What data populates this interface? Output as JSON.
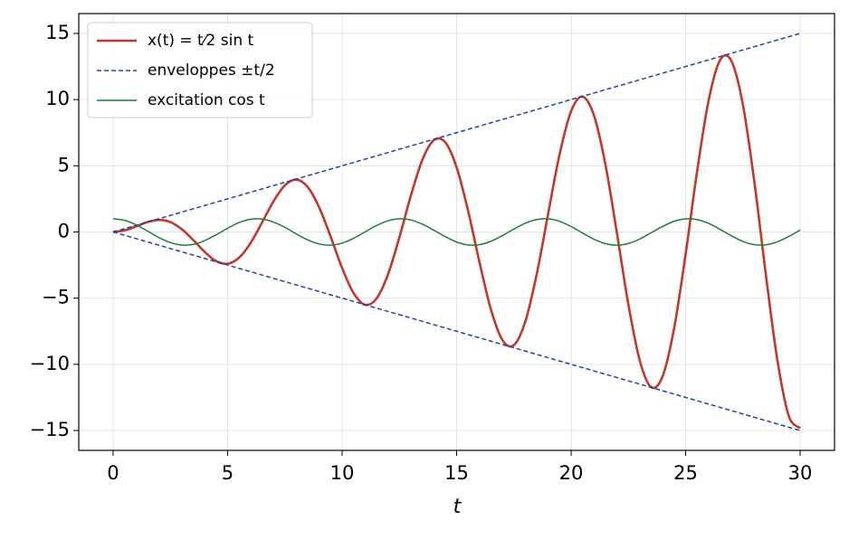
{
  "chart_data": {
    "type": "line",
    "x_label": "t",
    "x": [
      0,
      0.5,
      1,
      1.5,
      2,
      2.5,
      3,
      3.5,
      4,
      4.5,
      5,
      5.5,
      6,
      6.5,
      7,
      7.5,
      8,
      8.5,
      9,
      9.5,
      10,
      10.5,
      11,
      11.5,
      12,
      12.5,
      13,
      13.5,
      14,
      14.5,
      15,
      15.5,
      16,
      16.5,
      17,
      17.5,
      18,
      18.5,
      19,
      19.5,
      20,
      20.5,
      21,
      21.5,
      22,
      22.5,
      23,
      23.5,
      24,
      24.5,
      25,
      25.5,
      26,
      26.5,
      27,
      27.5,
      28,
      28.5,
      29,
      29.5,
      30
    ],
    "series": [
      {
        "name": "x(t) = t⁄2 sin t",
        "color": "#c0392b",
        "width": 2.6,
        "dash": "solid",
        "values": [
          0,
          0.12,
          0.42,
          0.75,
          0.91,
          0.75,
          0.21,
          -0.61,
          -1.51,
          -2.2,
          -2.4,
          -1.94,
          -0.84,
          0.7,
          2.3,
          3.52,
          3.96,
          3.39,
          1.85,
          -0.36,
          -2.72,
          -4.62,
          -5.5,
          -5.03,
          -3.22,
          -0.41,
          2.73,
          5.43,
          6.93,
          6.78,
          4.88,
          1.6,
          -2.3,
          -5.87,
          -8.17,
          -8.54,
          -6.76,
          -3.17,
          1.42,
          5.9,
          9.13,
          10.22,
          8.79,
          5.07,
          -0.1,
          -5.48,
          -9.73,
          -11.73,
          -10.87,
          -7.24,
          -1.66,
          4.58,
          9.91,
          12.98,
          12.91,
          9.62,
          3.79,
          -3.19,
          -9.62,
          -13.88,
          -14.82
        ]
      },
      {
        "name": "enveloppes ±t/2",
        "color": "#2440b3",
        "width": 1.5,
        "dash": "dashed",
        "values": [
          0,
          0.25,
          0.5,
          0.75,
          1,
          1.25,
          1.5,
          1.75,
          2,
          2.25,
          2.5,
          2.75,
          3,
          3.25,
          3.5,
          3.75,
          4,
          4.25,
          4.5,
          4.75,
          5,
          5.25,
          5.5,
          5.75,
          6,
          6.25,
          6.5,
          6.75,
          7,
          7.25,
          7.5,
          7.75,
          8,
          8.25,
          8.5,
          8.75,
          9,
          9.25,
          9.5,
          9.75,
          10,
          10.25,
          10.5,
          10.75,
          11,
          11.25,
          11.5,
          11.75,
          12,
          12.25,
          12.5,
          12.75,
          13,
          13.25,
          13.5,
          13.75,
          14,
          14.25,
          14.5,
          14.75,
          15
        ]
      },
      {
        "color": "#2440b3",
        "width": 1.5,
        "dash": "dashed",
        "values": [
          0,
          -0.25,
          -0.5,
          -0.75,
          -1,
          -1.25,
          -1.5,
          -1.75,
          -2,
          -2.25,
          -2.5,
          -2.75,
          -3,
          -3.25,
          -3.5,
          -3.75,
          -4,
          -4.25,
          -4.5,
          -4.75,
          -5,
          -5.25,
          -5.5,
          -5.75,
          -6,
          -6.25,
          -6.5,
          -6.75,
          -7,
          -7.25,
          -7.5,
          -7.75,
          -8,
          -8.25,
          -8.5,
          -8.75,
          -9,
          -9.25,
          -9.5,
          -9.75,
          -10,
          -10.25,
          -10.5,
          -10.75,
          -11,
          -11.25,
          -11.5,
          -11.75,
          -12,
          -12.25,
          -12.5,
          -12.75,
          -13,
          -13.25,
          -13.5,
          -13.75,
          -14,
          -14.25,
          -14.5,
          -14.75,
          -15
        ]
      },
      {
        "name": "excitation cos t",
        "color": "#1a7f3c",
        "width": 1.5,
        "dash": "solid",
        "values": [
          1,
          0.88,
          0.54,
          0.07,
          -0.42,
          -0.8,
          -0.99,
          -0.94,
          -0.65,
          -0.21,
          0.28,
          0.71,
          0.96,
          0.98,
          0.75,
          0.35,
          -0.15,
          -0.6,
          -0.91,
          -1,
          -0.84,
          -0.48,
          0,
          0.48,
          0.84,
          1,
          0.91,
          0.59,
          0.14,
          -0.35,
          -0.76,
          -0.98,
          -0.96,
          -0.7,
          -0.28,
          0.22,
          0.66,
          0.94,
          0.99,
          0.8,
          0.41,
          -0.08,
          -0.55,
          -0.88,
          -1,
          -0.87,
          -0.53,
          -0.05,
          0.42,
          0.81,
          0.99,
          0.93,
          0.65,
          0.2,
          -0.29,
          -0.71,
          -0.96,
          -0.97,
          -0.75,
          -0.34,
          0.15
        ]
      }
    ],
    "xlim": [
      -1.5,
      31.5
    ],
    "ylim": [
      -16.5,
      16.5
    ],
    "xticks": [
      0,
      5,
      10,
      15,
      20,
      25,
      30
    ],
    "yticks": [
      {
        "value": -15,
        "label": "−15"
      },
      {
        "value": -10,
        "label": "−10"
      },
      {
        "value": -5,
        "label": "−5"
      },
      0,
      5,
      10,
      15
    ],
    "grid": true,
    "legend": "upper-left"
  }
}
